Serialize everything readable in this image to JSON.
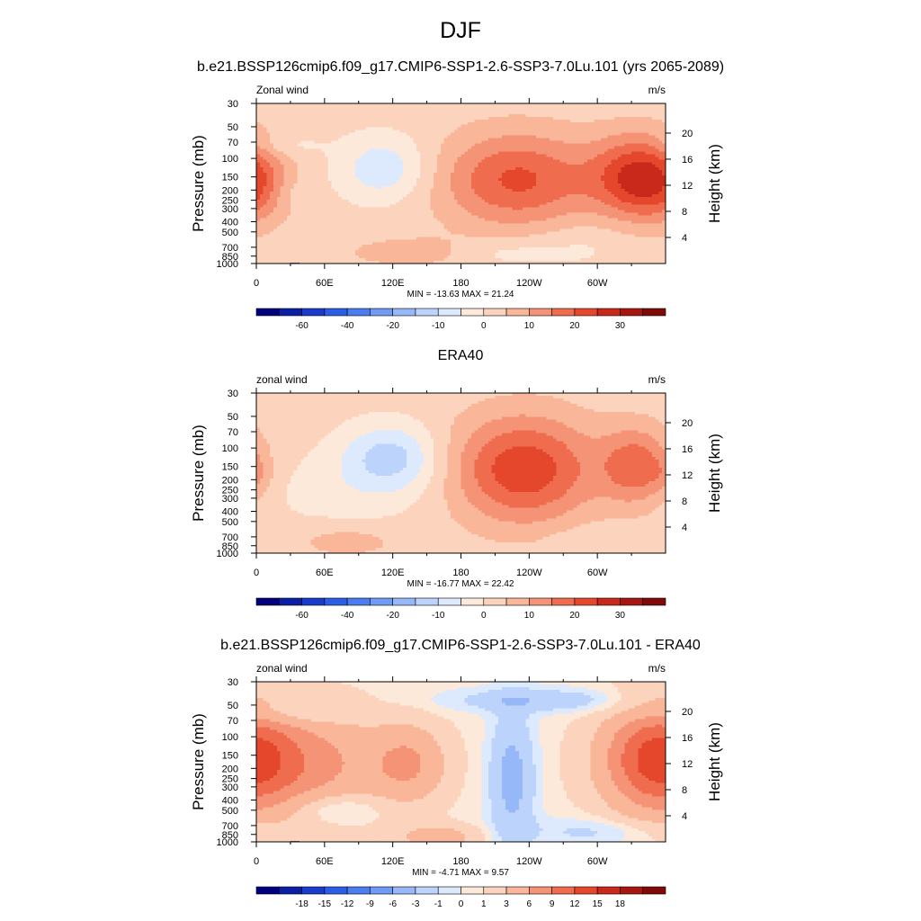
{
  "figure": {
    "title": "DJF"
  },
  "colors": {
    "panel_palette": [
      "#00007f",
      "#0a1ea6",
      "#1a3ccc",
      "#2b5ee6",
      "#4a7ef0",
      "#6f9bf4",
      "#97b8f8",
      "#bcd3fb",
      "#ddeafd",
      "#fde9da",
      "#fcd3bd",
      "#f9b699",
      "#f59376",
      "#ef6c4e",
      "#e4472b",
      "#c8291a",
      "#a71710",
      "#7f0a08"
    ],
    "terrain": "#000000"
  },
  "chart_data": [
    {
      "type": "heatmap",
      "title": "b.e21.BSSP126cmip6.f09_g17.CMIP6-SSP1-2.6-SSP3-7.0Lu.101 (yrs 2065-2089)",
      "left_label": "Zonal wind",
      "right_label": "m/s",
      "ylabel": "Pressure (mb)",
      "ylabel_right": "Height (km)",
      "x_ticks": [
        "0",
        "60E",
        "120E",
        "180",
        "120W",
        "60W"
      ],
      "x_tick_values": [
        0,
        60,
        120,
        180,
        240,
        300
      ],
      "xlim": [
        0,
        360
      ],
      "y_ticks": [
        "30",
        "50",
        "70",
        "100",
        "150",
        "200",
        "250",
        "300",
        "400",
        "500",
        "700",
        "850",
        "1000"
      ],
      "y_tick_values": [
        30,
        50,
        70,
        100,
        150,
        200,
        250,
        300,
        400,
        500,
        700,
        850,
        1000
      ],
      "ylim": [
        30,
        1000
      ],
      "y_scale": "log",
      "height_ticks": [
        "4",
        "8",
        "12",
        "16",
        "20"
      ],
      "height_tick_values": [
        4,
        8,
        12,
        16,
        20
      ],
      "stats": "MIN = -13.63  MAX =  21.24",
      "min": -13.63,
      "max": 21.24,
      "colorbar_labels": [
        "-60",
        "-40",
        "-20",
        "-10",
        "0",
        "10",
        "20",
        "30"
      ],
      "contour_levels": [
        -70,
        -60,
        -50,
        -40,
        -30,
        -20,
        -15,
        -10,
        -5,
        0,
        5,
        10,
        15,
        20,
        25,
        30,
        35
      ],
      "features": [
        {
          "lon": 230,
          "p": 160,
          "value": 19,
          "width_lon": 48,
          "depth_logp": 0.32
        },
        {
          "lon": 334,
          "p": 150,
          "value": 21,
          "width_lon": 28,
          "depth_logp": 0.28
        },
        {
          "lon": 0,
          "p": 180,
          "value": 9,
          "width_lon": 22,
          "depth_logp": 0.25
        },
        {
          "lon": 112,
          "p": 125,
          "value": -11,
          "width_lon": 28,
          "depth_logp": 0.22
        },
        {
          "lon": 145,
          "p": 780,
          "value": 7,
          "width_lon": 45,
          "depth_logp": 0.1
        },
        {
          "lon": 210,
          "p": 780,
          "value": -6,
          "width_lon": 40,
          "depth_logp": 0.1
        },
        {
          "lon": 290,
          "p": 650,
          "value": -3,
          "width_lon": 30,
          "depth_logp": 0.16
        },
        {
          "lon": 30,
          "p": 220,
          "value": -3,
          "width_lon": 12,
          "depth_logp": 0.1
        },
        {
          "lon": 25,
          "p": 75,
          "value": -4,
          "width_lon": 22,
          "depth_logp": 0.08
        }
      ],
      "background": 2,
      "terrain": true
    },
    {
      "type": "heatmap",
      "title": "ERA40",
      "left_label": "zonal wind",
      "right_label": "m/s",
      "ylabel": "Pressure (mb)",
      "ylabel_right": "Height (km)",
      "x_ticks": [
        "0",
        "60E",
        "120E",
        "180",
        "120W",
        "60W"
      ],
      "x_tick_values": [
        0,
        60,
        120,
        180,
        240,
        300
      ],
      "xlim": [
        0,
        360
      ],
      "y_ticks": [
        "30",
        "50",
        "70",
        "100",
        "150",
        "200",
        "250",
        "300",
        "400",
        "500",
        "700",
        "850",
        "1000"
      ],
      "y_tick_values": [
        30,
        50,
        70,
        100,
        150,
        200,
        250,
        300,
        400,
        500,
        700,
        850,
        1000
      ],
      "ylim": [
        30,
        1000
      ],
      "y_scale": "log",
      "height_ticks": [
        "4",
        "8",
        "12",
        "16",
        "20"
      ],
      "height_tick_values": [
        4,
        8,
        12,
        16,
        20
      ],
      "stats": "MIN = -16.77  MAX =  22.42",
      "min": -16.77,
      "max": 22.42,
      "colorbar_labels": [
        "-60",
        "-40",
        "-20",
        "-10",
        "0",
        "10",
        "20",
        "30"
      ],
      "contour_levels": [
        -70,
        -60,
        -50,
        -40,
        -30,
        -20,
        -15,
        -10,
        -5,
        0,
        5,
        10,
        15,
        20,
        25,
        30,
        35
      ],
      "features": [
        {
          "lon": 235,
          "p": 160,
          "value": 22,
          "width_lon": 45,
          "depth_logp": 0.36
        },
        {
          "lon": 335,
          "p": 150,
          "value": 16,
          "width_lon": 22,
          "depth_logp": 0.26
        },
        {
          "lon": 118,
          "p": 120,
          "value": -14,
          "width_lon": 30,
          "depth_logp": 0.22
        },
        {
          "lon": 80,
          "p": 250,
          "value": -4,
          "width_lon": 60,
          "depth_logp": 0.25
        },
        {
          "lon": 80,
          "p": 780,
          "value": 6,
          "width_lon": 30,
          "depth_logp": 0.1
        },
        {
          "lon": 300,
          "p": 750,
          "value": -3,
          "width_lon": 30,
          "depth_logp": 0.1
        },
        {
          "lon": 0,
          "p": 180,
          "value": 4,
          "width_lon": 10,
          "depth_logp": 0.12
        }
      ],
      "background": 2,
      "terrain": false
    },
    {
      "type": "heatmap",
      "title": "b.e21.BSSP126cmip6.f09_g17.CMIP6-SSP1-2.6-SSP3-7.0Lu.101 - ERA40",
      "left_label": "zonal wind",
      "right_label": "m/s",
      "ylabel": "Pressure (mb)",
      "ylabel_right": "Height (km)",
      "x_ticks": [
        "0",
        "60E",
        "120E",
        "180",
        "120W",
        "60W"
      ],
      "x_tick_values": [
        0,
        60,
        120,
        180,
        240,
        300
      ],
      "xlim": [
        0,
        360
      ],
      "y_ticks": [
        "30",
        "50",
        "70",
        "100",
        "150",
        "200",
        "250",
        "300",
        "400",
        "500",
        "700",
        "850",
        "1000"
      ],
      "y_tick_values": [
        30,
        50,
        70,
        100,
        150,
        200,
        250,
        300,
        400,
        500,
        700,
        850,
        1000
      ],
      "ylim": [
        30,
        1000
      ],
      "y_scale": "log",
      "height_ticks": [
        "4",
        "8",
        "12",
        "16",
        "20"
      ],
      "height_tick_values": [
        4,
        8,
        12,
        16,
        20
      ],
      "stats": "MIN =  -4.71  MAX =   9.57",
      "min": -4.71,
      "max": 9.57,
      "colorbar_labels": [
        "-18",
        "-15",
        "-12",
        "-9",
        "-6",
        "-3",
        "-1",
        "0",
        "1",
        "3",
        "6",
        "9",
        "12",
        "15",
        "18"
      ],
      "contour_levels": [
        -21,
        -18,
        -15,
        -12,
        -9,
        -6,
        -3,
        -1,
        0,
        1,
        3,
        6,
        9,
        12,
        15,
        18,
        21
      ],
      "features": [
        {
          "lon": 350,
          "p": 160,
          "value": 9.5,
          "width_lon": 30,
          "depth_logp": 0.35
        },
        {
          "lon": 40,
          "p": 180,
          "value": 6.5,
          "width_lon": 55,
          "depth_logp": 0.35
        },
        {
          "lon": 135,
          "p": 180,
          "value": 5,
          "width_lon": 22,
          "depth_logp": 0.25
        },
        {
          "lon": 225,
          "p": 250,
          "value": -4.5,
          "width_lon": 14,
          "depth_logp": 0.45
        },
        {
          "lon": 250,
          "p": 45,
          "value": -3,
          "width_lon": 60,
          "depth_logp": 0.08
        },
        {
          "lon": 30,
          "p": 60,
          "value": -2.5,
          "width_lon": 40,
          "depth_logp": 0.08
        },
        {
          "lon": 70,
          "p": 480,
          "value": -3,
          "width_lon": 28,
          "depth_logp": 0.1
        },
        {
          "lon": 300,
          "p": 800,
          "value": -2,
          "width_lon": 45,
          "depth_logp": 0.1
        },
        {
          "lon": 160,
          "p": 900,
          "value": 4,
          "width_lon": 25,
          "depth_logp": 0.08
        }
      ],
      "background": 0.5,
      "terrain": true
    }
  ]
}
